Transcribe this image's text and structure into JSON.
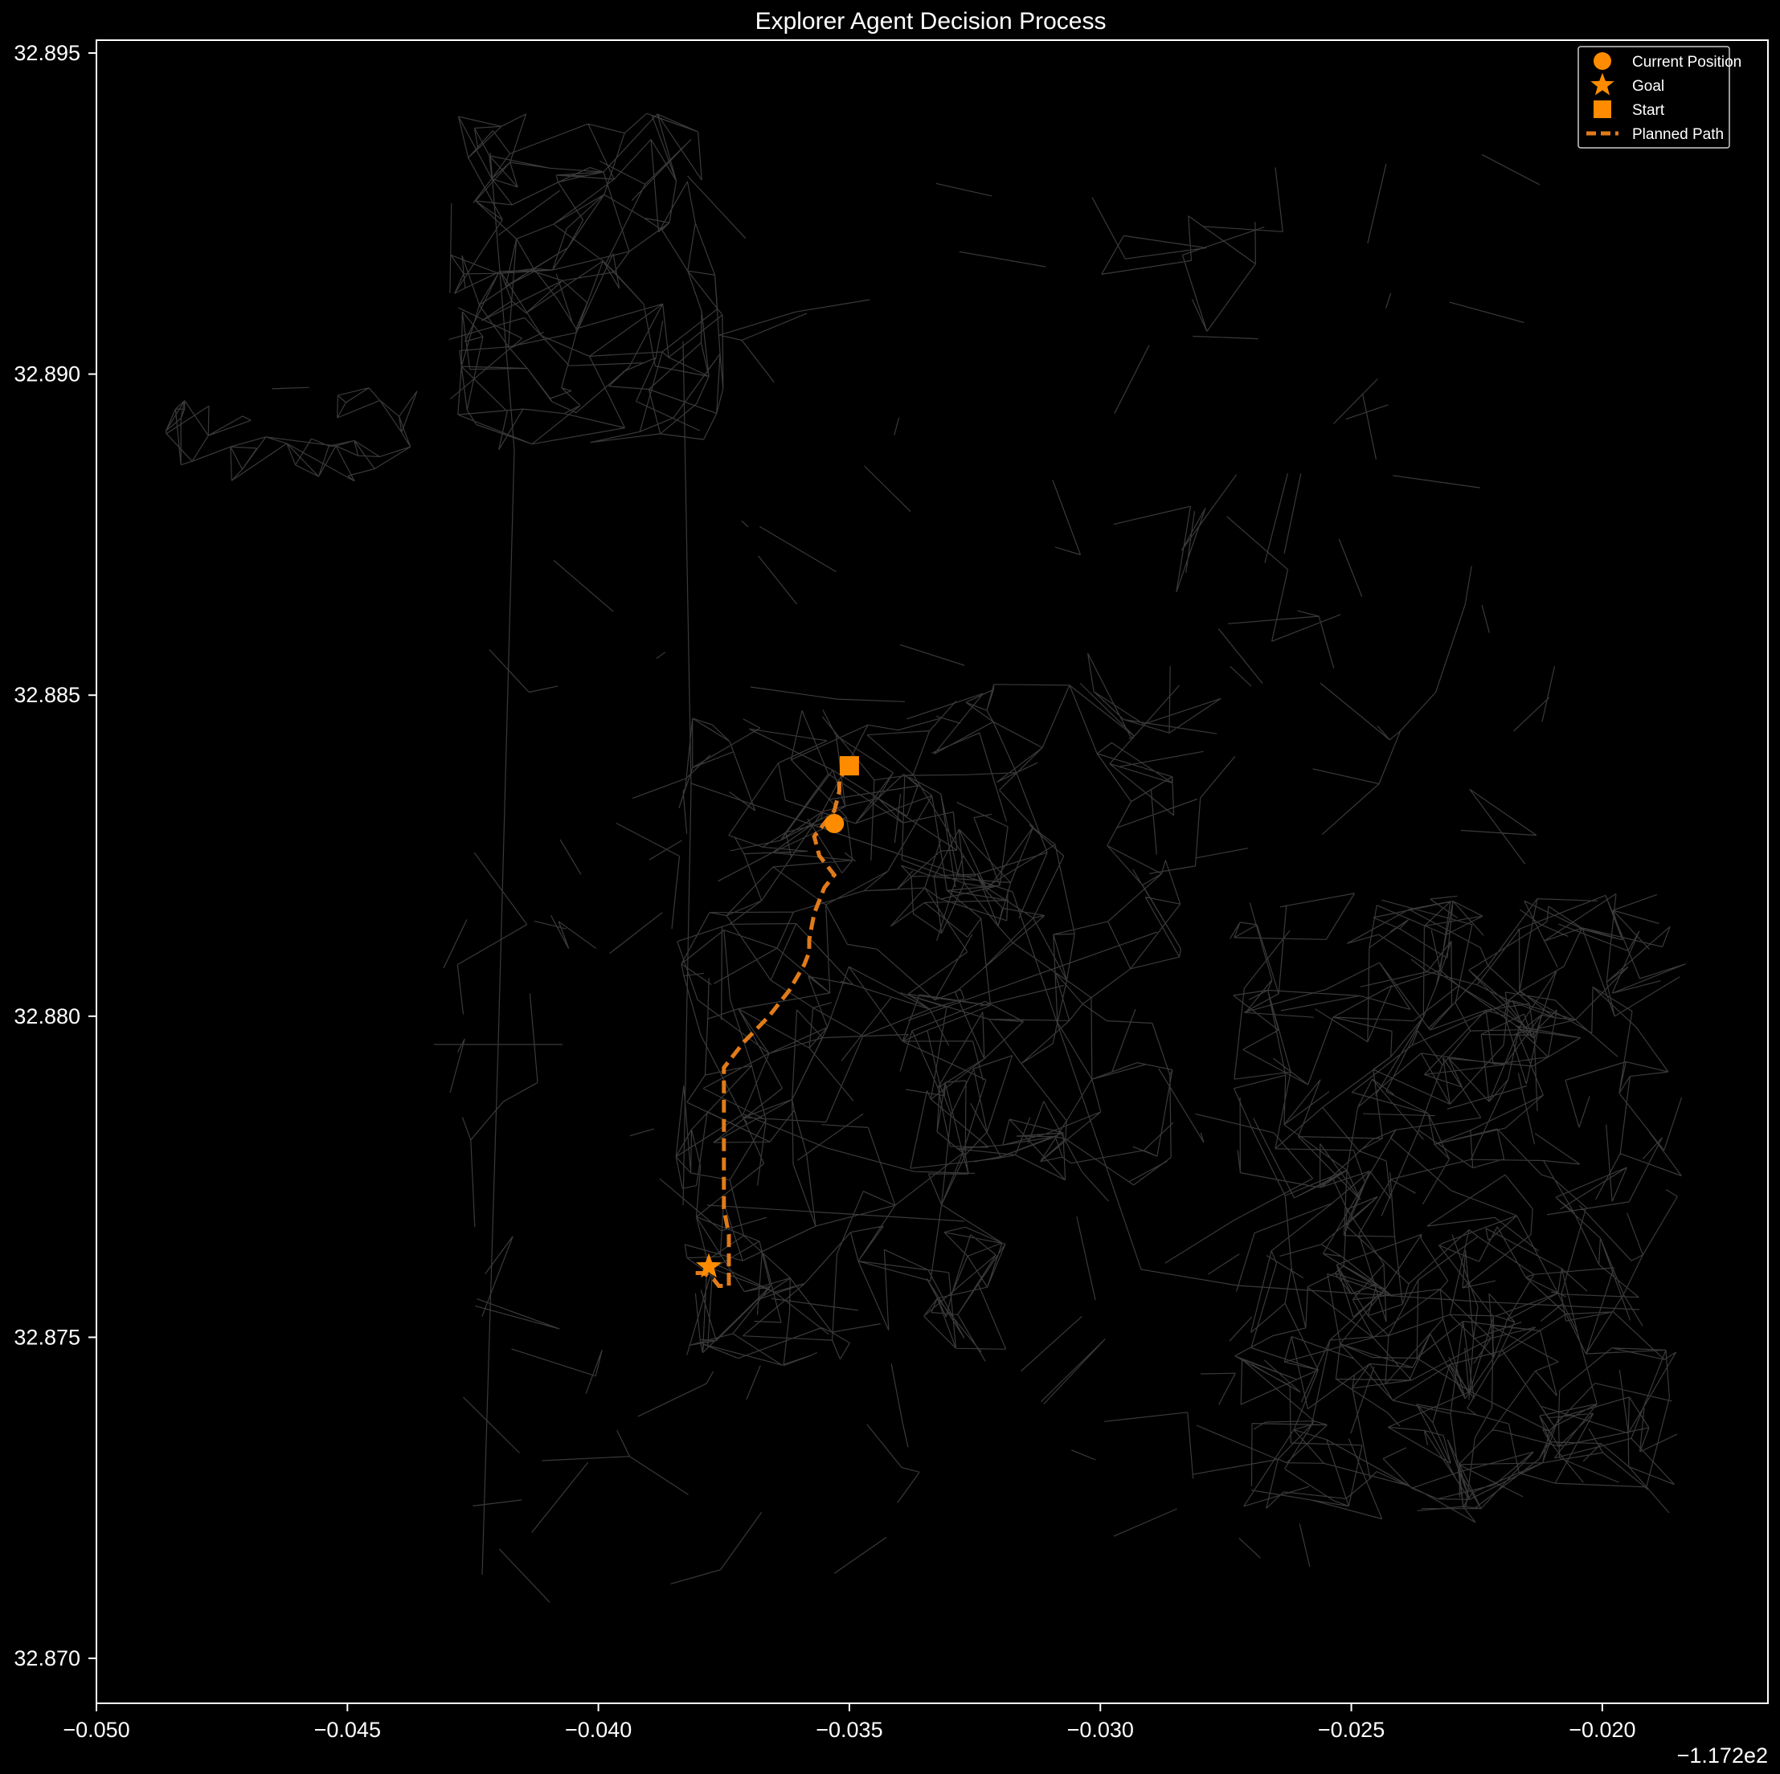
{
  "chart_data": {
    "type": "scatter",
    "title": "Explorer Agent Decision Process",
    "xlabel": "",
    "ylabel": "",
    "x_offset_label": "−1.172e2",
    "xlim": [
      -0.05,
      -0.0167
    ],
    "ylim": [
      32.8693,
      32.8952
    ],
    "x_ticks": [
      -0.05,
      -0.045,
      -0.04,
      -0.035,
      -0.03,
      -0.025,
      -0.02
    ],
    "x_tick_labels": [
      "−0.050",
      "−0.045",
      "−0.040",
      "−0.035",
      "−0.030",
      "−0.025",
      "−0.020"
    ],
    "y_ticks": [
      32.87,
      32.875,
      32.88,
      32.885,
      32.89,
      32.895
    ],
    "y_tick_labels": [
      "32.870",
      "32.875",
      "32.880",
      "32.885",
      "32.890",
      "32.895"
    ],
    "grid": false,
    "legend_placement": "top-right",
    "colors": {
      "background": "#000000",
      "marker": "#ff8c00",
      "path": "#e07b1a",
      "roads": "#3a3a3a",
      "text": "#ffffff"
    },
    "series": [
      {
        "name": "Current Position",
        "marker": "circle",
        "x": [
          -0.0353
        ],
        "y": [
          32.883
        ]
      },
      {
        "name": "Goal",
        "marker": "star",
        "x": [
          -0.0378
        ],
        "y": [
          32.8761
        ]
      },
      {
        "name": "Start",
        "marker": "square",
        "x": [
          -0.035
        ],
        "y": [
          32.8839
        ]
      },
      {
        "name": "Planned Path",
        "marker": "dashed-line",
        "x": [
          -0.035,
          -0.0352,
          -0.0352,
          -0.0353,
          -0.0355,
          -0.0357,
          -0.0356,
          -0.0353,
          -0.0355,
          -0.0357,
          -0.0358,
          -0.0358,
          -0.0359,
          -0.0362,
          -0.0366,
          -0.0371,
          -0.0375,
          -0.0375,
          -0.0375,
          -0.0375,
          -0.0374,
          -0.0374,
          -0.0374,
          -0.0374,
          -0.0376,
          -0.0377,
          -0.0379,
          -0.0381
        ],
        "y": [
          32.8839,
          32.8837,
          32.8835,
          32.8832,
          32.883,
          32.8828,
          32.8825,
          32.8822,
          32.882,
          32.8816,
          32.8812,
          32.881,
          32.8808,
          32.8804,
          32.88,
          32.8796,
          32.8792,
          32.8785,
          32.8778,
          32.877,
          32.8766,
          32.8763,
          32.8761,
          32.8758,
          32.8758,
          32.8759,
          32.876,
          32.876
        ]
      }
    ]
  }
}
